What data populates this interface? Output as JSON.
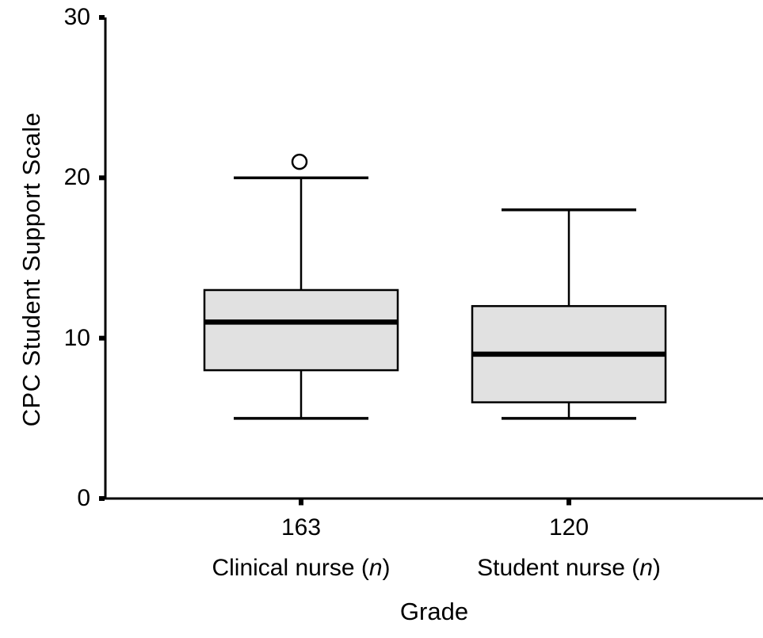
{
  "chart_data": {
    "type": "boxplot",
    "title": "",
    "ylabel": "CPC Student Support Scale",
    "xlabel": "Grade",
    "ylim": [
      0,
      30
    ],
    "yticks": [
      30,
      20,
      10,
      0
    ],
    "grid": false,
    "legend": "none",
    "groups": [
      {
        "category_count": "163",
        "label_prefix": "Clinical nurse (",
        "label_italic": "n",
        "label_suffix": ")",
        "whisker_low": 5,
        "q1": 8,
        "median": 11,
        "q3": 13,
        "whisker_high": 20,
        "outliers": [
          21
        ]
      },
      {
        "category_count": "120",
        "label_prefix": "Student nurse (",
        "label_italic": "n",
        "label_suffix": ")",
        "whisker_low": 5,
        "q1": 6,
        "median": 9,
        "q3": 12,
        "whisker_high": 18,
        "outliers": []
      }
    ],
    "colors": {
      "box_fill": "#e1e1e1",
      "stroke": "#000000",
      "text": "#000000",
      "background": "#ffffff"
    }
  }
}
